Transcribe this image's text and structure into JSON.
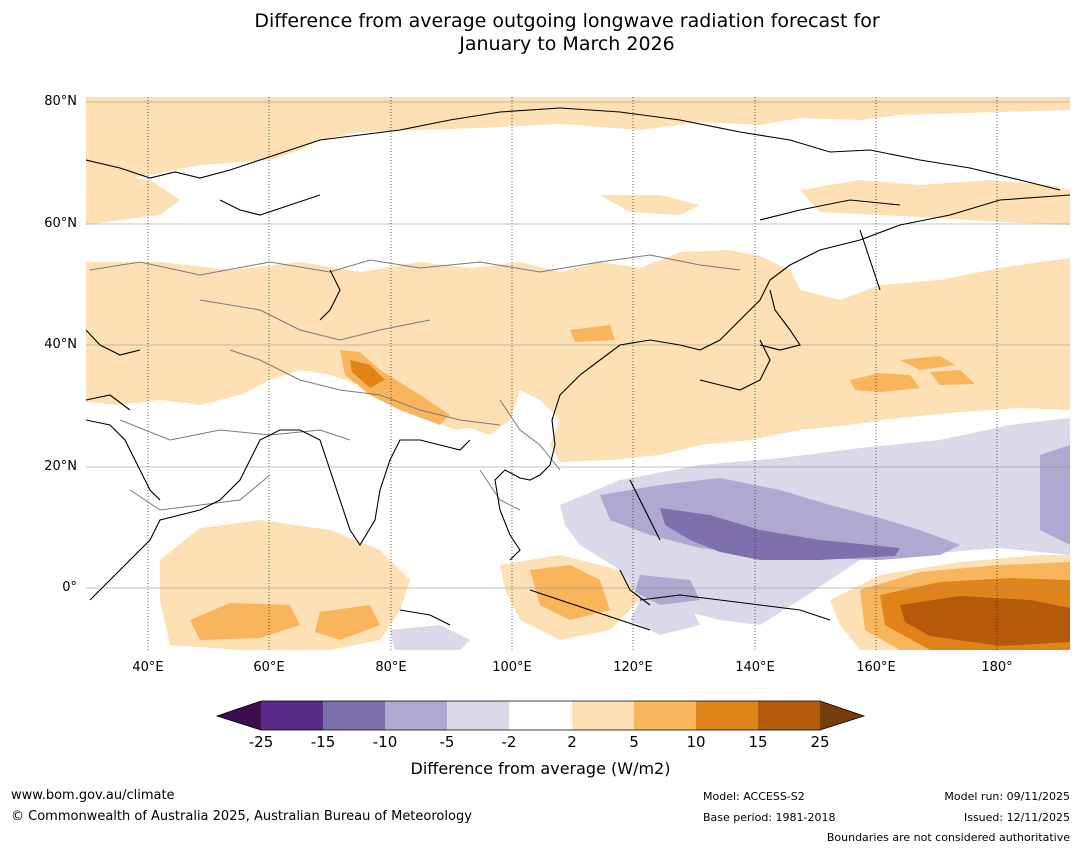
{
  "title": {
    "line1": "Difference from average outgoing longwave radiation forecast for",
    "line2": "January to March 2026"
  },
  "map": {
    "region": "Asia, Indian Ocean and western Pacific",
    "lat_labels": [
      "80°N",
      "60°N",
      "40°N",
      "20°N",
      "0°"
    ],
    "lon_labels": [
      "40°E",
      "60°E",
      "80°E",
      "100°E",
      "120°E",
      "140°E",
      "160°E",
      "180°"
    ]
  },
  "colorbar": {
    "ticks": [
      "-25",
      "-15",
      "-10",
      "-5",
      "-2",
      "2",
      "5",
      "10",
      "15",
      "25"
    ],
    "colors": [
      "#3b0f4e",
      "#5a2a8a",
      "#7e70ad",
      "#b0a8d0",
      "#d9d9ea",
      "#ffffff",
      "#fde0b4",
      "#f8b55c",
      "#e0841a",
      "#b45a0a",
      "#7a3b0b"
    ],
    "label": "Difference from average (W/m2)"
  },
  "footer": {
    "url": "www.bom.gov.au/climate",
    "copyright": "© Commonwealth of Australia 2025, Australian Bureau of Meteorology",
    "model": "Model: ACCESS-S2",
    "base_period": "Base period: 1981-2018",
    "model_run": "Model run: 09/11/2025",
    "issued": "Issued: 12/11/2025",
    "disclaimer": "Boundaries are not considered authoritative"
  }
}
